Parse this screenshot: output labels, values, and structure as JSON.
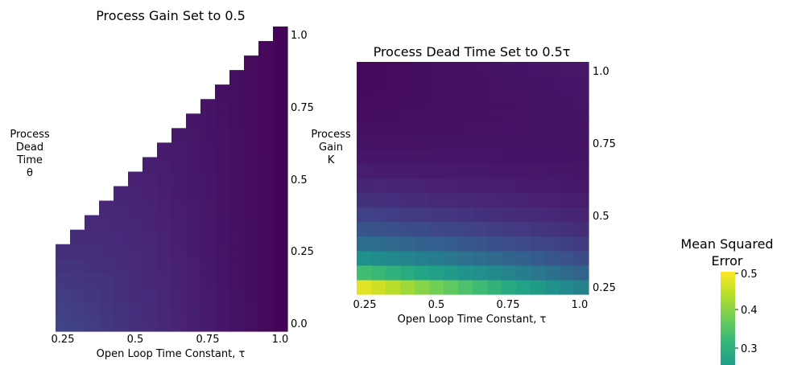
{
  "charts": [
    {
      "type": "heatmap",
      "shape": "upper-triangular",
      "title": "Process Gain Set to 0.5",
      "xlabel": "Open Loop Time Constant, τ",
      "ylabel_lines": [
        "Process",
        "Dead",
        "Time",
        "θ"
      ],
      "x_ticks": [
        "0.25",
        "0.5",
        "0.75",
        "1.0"
      ],
      "y_ticks": [
        "0.0",
        "0.25",
        "0.5",
        "0.75",
        "1.0"
      ],
      "xlim": [
        0.25,
        1.0
      ],
      "ylim": [
        0.0,
        1.0
      ],
      "n_cols": 16,
      "n_rows": 21,
      "colormap": "viridis",
      "value_range": [
        0.25,
        0.5
      ],
      "value_model": "MSE falls from ≈0.30 at τ=0.25, θ=0 to ≈0.26 toward large τ and low θ/τ ratio; cells only where θ ≤ τ"
    },
    {
      "type": "heatmap",
      "title": "Process Dead Time Set to 0.5τ",
      "xlabel": "Open Loop Time Constant, τ",
      "ylabel_lines": [
        "Process",
        "Gain",
        "K"
      ],
      "x_ticks": [
        "0.25",
        "0.5",
        "0.75",
        "1.0"
      ],
      "y_ticks": [
        "0.25",
        "0.5",
        "0.75",
        "1.0"
      ],
      "xlim": [
        0.25,
        1.0
      ],
      "ylim": [
        0.25,
        1.0
      ],
      "n_cols": 16,
      "n_rows": 16,
      "colormap": "viridis",
      "value_range": [
        0.25,
        0.5
      ],
      "value_model": "MSE highest (≈0.49) at K=0.25, τ=0.25; decreases with K and τ toward ≈0.26"
    }
  ],
  "colorbar": {
    "title_lines": [
      "Mean Squared",
      "Error"
    ],
    "ticks": [
      "0.5",
      "0.4",
      "0.3"
    ],
    "range": [
      0.25,
      0.5
    ]
  }
}
